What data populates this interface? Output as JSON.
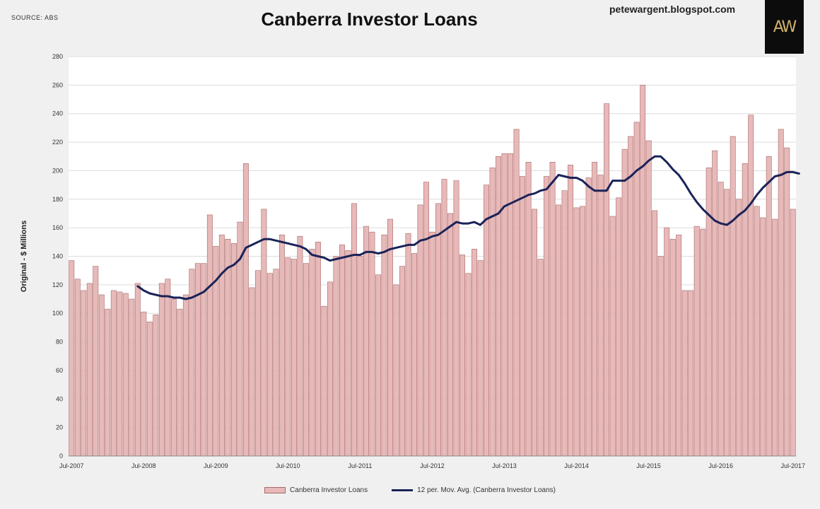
{
  "source_label": "SOURCE: ABS",
  "site_label": "petewargent.blogspot.com",
  "logo_text": "AW",
  "colors": {
    "plot_bg": "#ffffff",
    "page_bg": "#f0f0f0",
    "bar_fill": "#e7b9b9",
    "bar_stroke": "#a86a6a",
    "line": "#1a2358",
    "grid": "#dcdcdc"
  },
  "chart_data": {
    "type": "bar",
    "title": "Canberra Investor Loans",
    "ylabel": "Original - $ Millions",
    "xlabel": "",
    "ylim": [
      0,
      280
    ],
    "yticks": [
      0,
      20,
      40,
      60,
      80,
      100,
      120,
      140,
      160,
      180,
      200,
      220,
      240,
      260,
      280
    ],
    "xticks": [
      "Jul-2007",
      "Jul-2008",
      "Jul-2009",
      "Jul-2010",
      "Jul-2011",
      "Jul-2012",
      "Jul-2013",
      "Jul-2014",
      "Jul-2015",
      "Jul-2016",
      "Jul-2017"
    ],
    "grid": true,
    "legend_position": "bottom",
    "first_period": "Jul-2007",
    "last_period": "Jul-2017",
    "series": [
      {
        "name": "Canberra Investor Loans",
        "type": "bar",
        "values": [
          137,
          124,
          116,
          121,
          133,
          113,
          103,
          116,
          115,
          114,
          110,
          121,
          101,
          94,
          99,
          121,
          124,
          110,
          103,
          113,
          131,
          135,
          135,
          169,
          147,
          155,
          152,
          149,
          164,
          205,
          118,
          130,
          173,
          128,
          131,
          155,
          139,
          138,
          154,
          135,
          145,
          150,
          105,
          122,
          140,
          148,
          144,
          177,
          140,
          161,
          157,
          127,
          155,
          166,
          120,
          133,
          156,
          142,
          176,
          192,
          157,
          177,
          194,
          170,
          193,
          141,
          128,
          145,
          137,
          190,
          202,
          210,
          212,
          212,
          229,
          196,
          206,
          173,
          138,
          196,
          206,
          176,
          186,
          204,
          174,
          175,
          195,
          206,
          197,
          247,
          168,
          181,
          215,
          224,
          234,
          260,
          221,
          172,
          140,
          160,
          152,
          155,
          116,
          116,
          161,
          159,
          202,
          214,
          192,
          187,
          224,
          180,
          205,
          239,
          175,
          167,
          210,
          166,
          229,
          216,
          173
        ]
      },
      {
        "name": "12 per. Mov. Avg. (Canberra Investor Loans)",
        "type": "line",
        "start_index": 11,
        "values": [
          119,
          116,
          114,
          113,
          112,
          112,
          111,
          111,
          110,
          111,
          113,
          115,
          119,
          123,
          128,
          132,
          134,
          138,
          146,
          148,
          150,
          152,
          152,
          151,
          150,
          149,
          148,
          147,
          145,
          141,
          140,
          139,
          137,
          138,
          139,
          140,
          141,
          141,
          143,
          143,
          142,
          143,
          145,
          146,
          147,
          148,
          148,
          151,
          152,
          154,
          155,
          158,
          161,
          164,
          163,
          163,
          164,
          162,
          166,
          168,
          170,
          175,
          177,
          179,
          181,
          183,
          184,
          186,
          187,
          192,
          197,
          196,
          195,
          195,
          193,
          189,
          186,
          186,
          186,
          193,
          193,
          193,
          196,
          200,
          203,
          207,
          210,
          210,
          206,
          201,
          197,
          191,
          184,
          178,
          173,
          169,
          165,
          163,
          162,
          165,
          169,
          172,
          177,
          183,
          188,
          192,
          196,
          197,
          199,
          199,
          198
        ]
      }
    ]
  }
}
